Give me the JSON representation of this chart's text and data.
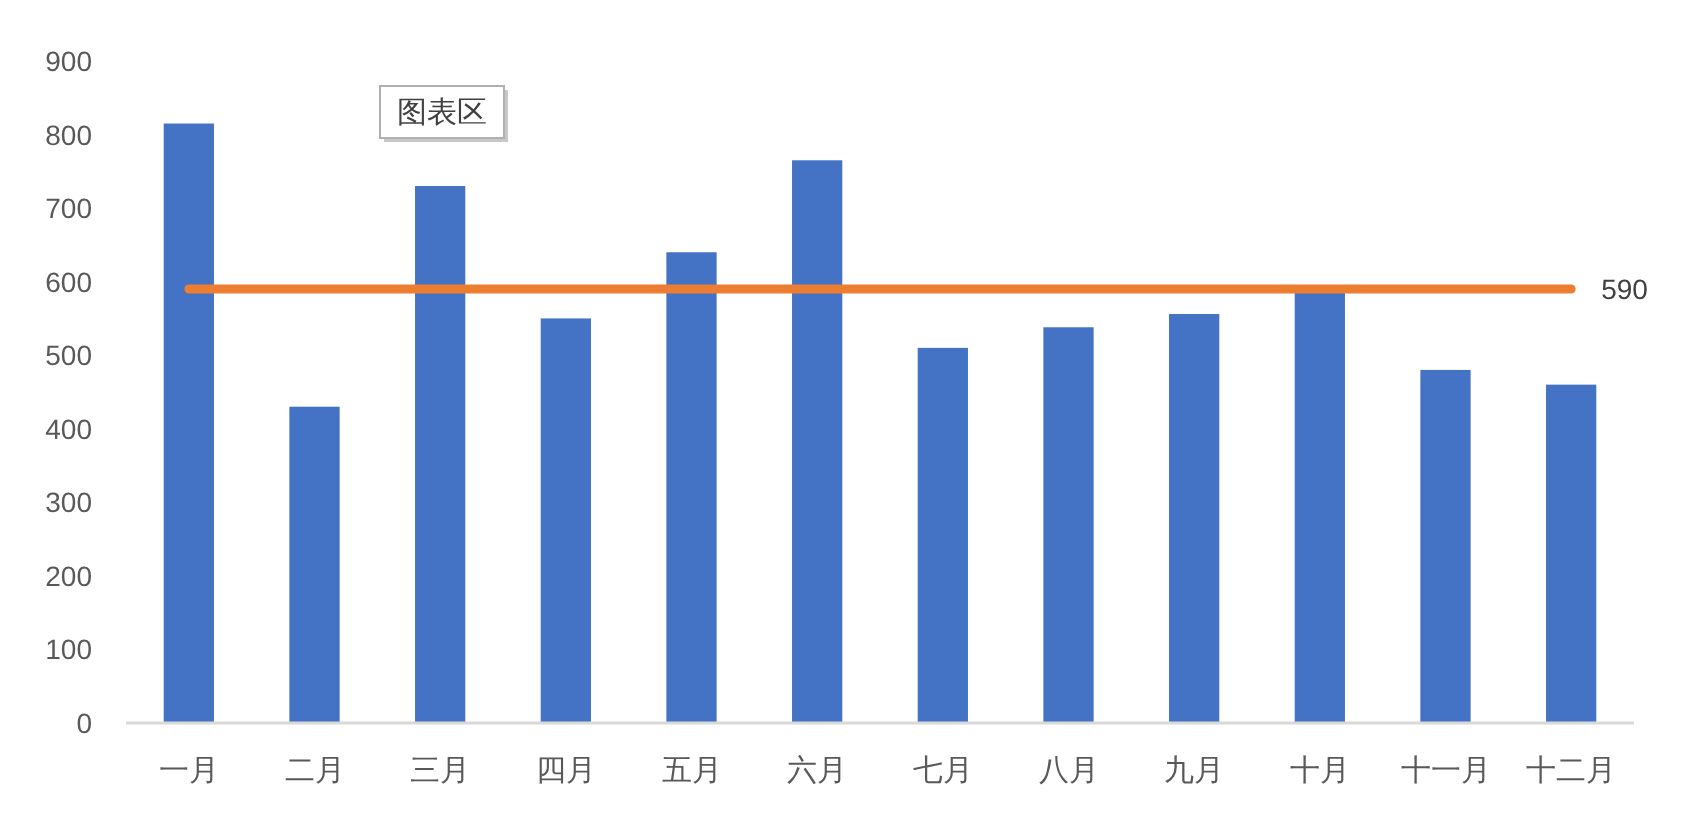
{
  "chart_data": {
    "type": "bar",
    "categories": [
      "一月",
      "二月",
      "三月",
      "四月",
      "五月",
      "六月",
      "七月",
      "八月",
      "九月",
      "十月",
      "十一月",
      "十二月"
    ],
    "series": [
      {
        "color": "#4472c4",
        "values": [
          815,
          430,
          730,
          550,
          640,
          765,
          510,
          538,
          556,
          585,
          480,
          460
        ]
      }
    ],
    "ylim": [
      0,
      900
    ],
    "yticks": [
      0,
      100,
      200,
      300,
      400,
      500,
      600,
      700,
      800,
      900
    ],
    "ref_lines": [
      {
        "axis": "y",
        "value": 590,
        "label": "590",
        "color": "#ed7d31"
      }
    ],
    "annotations": [
      "图表区"
    ],
    "grid": false
  }
}
